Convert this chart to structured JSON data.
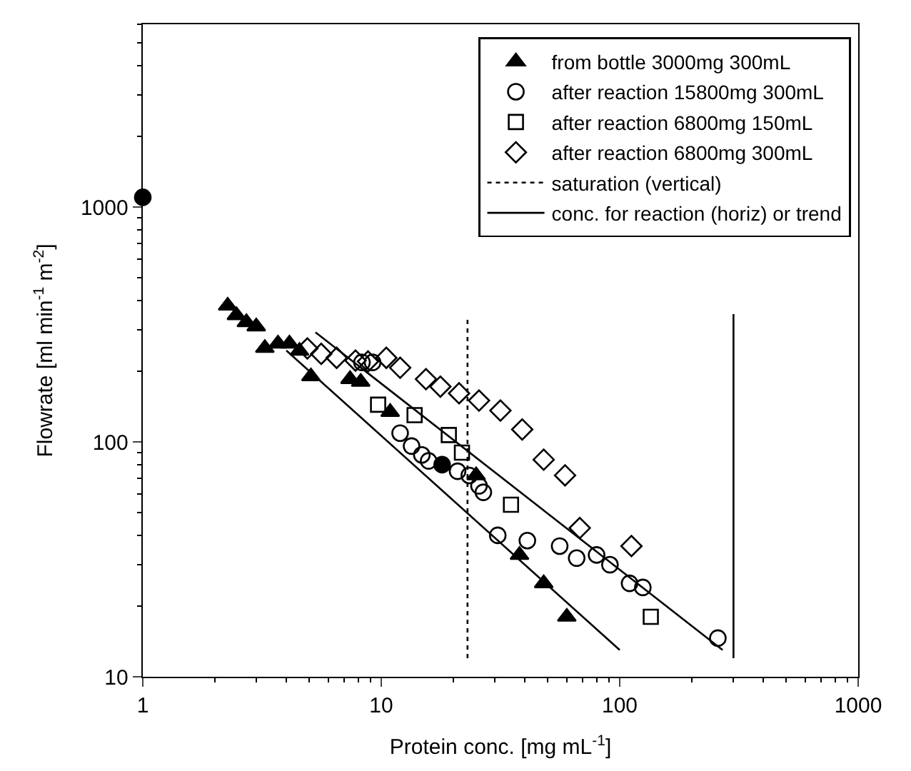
{
  "chart_data": {
    "type": "scatter",
    "xlabel": "Protein conc. [mg mL$^{-1}$]",
    "ylabel": "Flowrate [ml min$^{-1}$ m$^{-2}$]",
    "log": "xy",
    "xlim": [
      1,
      1000
    ],
    "ylim": [
      10,
      6000
    ],
    "xticks": [
      1,
      10,
      100,
      1000
    ],
    "yticks": [
      10,
      100,
      1000
    ],
    "legend": "top right",
    "series": [
      {
        "name": "from bottle 3000mg 300mL",
        "marker": "triangle",
        "color": "#000000",
        "x": [
          2.27,
          2.47,
          2.72,
          2.99,
          3.25,
          3.69,
          4.12,
          4.54,
          5.07,
          7.4,
          8.2,
          10.9,
          25,
          38,
          48,
          60
        ],
        "values": [
          380,
          346,
          323,
          310,
          251,
          262,
          262,
          244,
          190,
          185,
          180,
          134,
          72,
          33,
          25,
          18
        ]
      },
      {
        "name": "after reaction 15800mg 300mL",
        "marker": "circle",
        "color": "#000000",
        "x": [
          8.3,
          9.2,
          12,
          13.4,
          14.8,
          15.8,
          20.9,
          23.4,
          25.7,
          26.8,
          30.8,
          41,
          56,
          66,
          80,
          91,
          110,
          125,
          258
        ],
        "values": [
          218,
          218,
          109,
          96,
          88,
          83,
          75,
          72,
          65,
          61,
          40,
          38,
          36,
          32,
          33,
          30,
          25,
          24,
          14.6
        ]
      },
      {
        "name": "after reaction 6800mg 150mL",
        "marker": "square",
        "color": "#000000",
        "x": [
          9.7,
          13.8,
          19.2,
          21.8,
          35,
          135
        ],
        "values": [
          144,
          130,
          107,
          90,
          54,
          18
        ]
      },
      {
        "name": "after reaction 6800mg 300mL",
        "marker": "diamond",
        "color": "#000000",
        "x": [
          4.9,
          5.6,
          6.5,
          7.8,
          8.8,
          10.5,
          12,
          15.4,
          17.7,
          21.2,
          25.7,
          31.6,
          39,
          48,
          59,
          68,
          112
        ],
        "values": [
          250,
          237,
          228,
          222,
          220,
          228,
          207,
          185,
          172,
          161,
          150,
          136,
          113,
          84,
          72,
          43,
          36
        ]
      },
      {
        "name": "saturation (vertical)",
        "type": "line",
        "marker": "none",
        "line_style": "dotted",
        "color": "#000000",
        "x": [
          23,
          23
        ],
        "values": [
          12,
          345
        ]
      },
      {
        "name": "conc. for reaction (horiz) or trend",
        "type": "line",
        "marker": "none",
        "line_style": "solid",
        "color": "#000000",
        "x": [
          4,
          100,
          null,
          5.3,
          270,
          null,
          300,
          300
        ],
        "values": [
          245,
          13,
          null,
          293,
          13,
          null,
          12,
          350
        ]
      },
      {
        "marker": "circle",
        "color": "#000000",
        "x": [
          1,
          18
        ],
        "values": [
          1100,
          80
        ]
      }
    ]
  }
}
